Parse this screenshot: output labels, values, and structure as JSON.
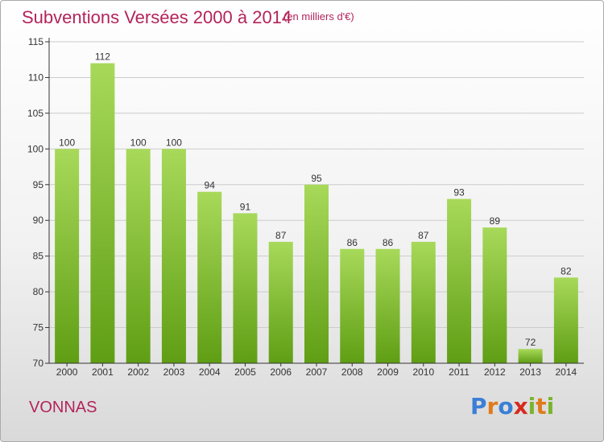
{
  "header": {
    "title": "Subventions Versées 2000 à 2014",
    "subtitle": "(en milliers d'€)"
  },
  "footer": {
    "commune": "VONNAS",
    "logo_text": "Proxiti",
    "logo_colors": [
      "#3a7fd5",
      "#e07b1a",
      "#3a7fd5",
      "#d62a1e",
      "#7bb32e",
      "#e07b1a",
      "#7bb32e"
    ]
  },
  "colors": {
    "bar_top": "#a8d95a",
    "bar_bottom": "#5f9e14",
    "accent": "#b3245a",
    "axis": "#333333",
    "grid": "#cccccc"
  },
  "chart_data": {
    "type": "bar",
    "title": "Subventions Versées 2000 à 2014",
    "subtitle": "(en milliers d'€)",
    "categories": [
      "2000",
      "2001",
      "2002",
      "2003",
      "2004",
      "2005",
      "2006",
      "2007",
      "2008",
      "2009",
      "2010",
      "2011",
      "2012",
      "2013",
      "2014"
    ],
    "values": [
      100,
      112,
      100,
      100,
      94,
      91,
      87,
      95,
      86,
      86,
      87,
      93,
      89,
      72,
      82
    ],
    "ylim": [
      70,
      115
    ],
    "yticks": [
      70,
      75,
      80,
      85,
      90,
      95,
      100,
      105,
      110,
      115
    ],
    "grid": "horizontal",
    "data_labels": true
  }
}
